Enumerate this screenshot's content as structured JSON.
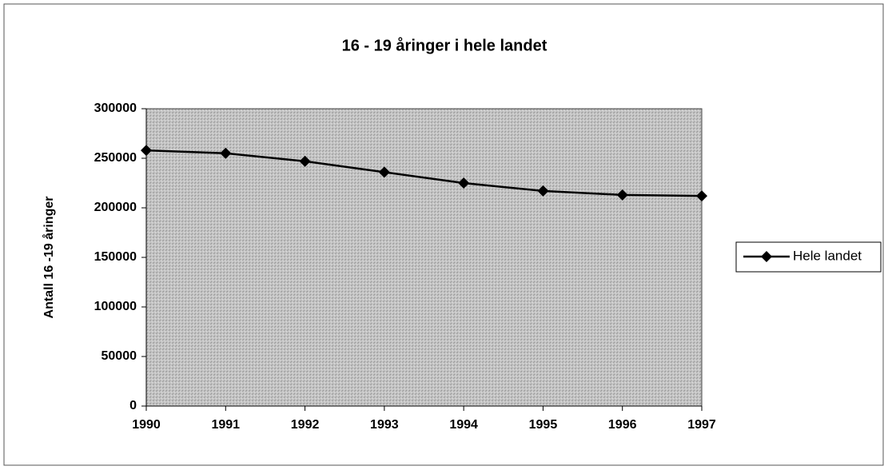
{
  "chart_data": {
    "type": "line",
    "title": "16 - 19 åringer i hele landet",
    "y_label": "Antall 16 -19 åringer",
    "categories": [
      "1990",
      "1991",
      "1992",
      "1993",
      "1994",
      "1995",
      "1996",
      "1997"
    ],
    "series": [
      {
        "name": "Hele landet",
        "color": "#000000",
        "values": [
          258000,
          255000,
          247000,
          236000,
          225000,
          217000,
          213000,
          212000
        ]
      }
    ],
    "ylim": [
      0,
      300000
    ],
    "yticks": [
      0,
      50000,
      100000,
      150000,
      200000,
      250000,
      300000
    ],
    "grid": false,
    "legend": "right"
  }
}
